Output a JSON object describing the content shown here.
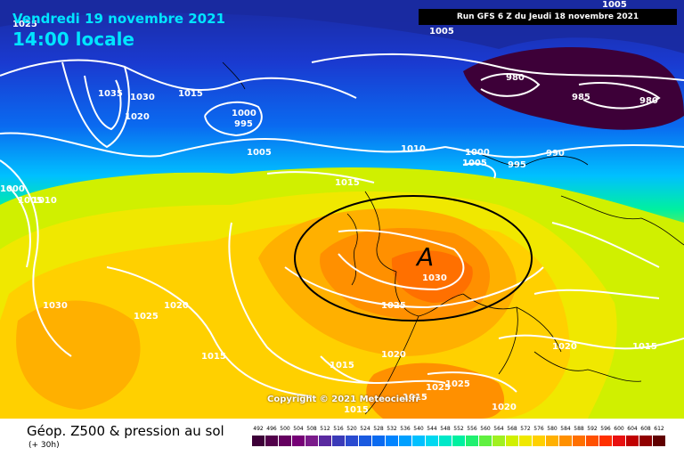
{
  "header": {
    "date_line": "Vendredi 19 novembre 2021",
    "time_line": "14:00 locale",
    "run_info": "Run GFS 6 Z du Jeudi 18 novembre 2021"
  },
  "map": {
    "high_pressure_symbol": "A",
    "copyright": "Copyright © 2021 Meteociel.fr",
    "isobar_labels": [
      "1025",
      "1035",
      "1030",
      "1020",
      "1015",
      "1000",
      "995",
      "1005",
      "1010",
      "1005",
      "1000",
      "1005",
      "995",
      "990",
      "980",
      "985",
      "980",
      "1015",
      "1000",
      "1005",
      "1010",
      "1030",
      "1025",
      "1030",
      "1025",
      "1020",
      "1015",
      "1015",
      "1020",
      "1025",
      "1025",
      "1020",
      "1015",
      "1020",
      "1015",
      "1015",
      "1005"
    ],
    "contour_color": "#ffffff",
    "high_ellipse_color": "#000000"
  },
  "footer": {
    "title": "Géop. Z500 & pression au sol",
    "subtitle": "(+ 30h)"
  },
  "legend": {
    "labels": [
      "492",
      "496",
      "500",
      "504",
      "508",
      "512",
      "516",
      "520",
      "524",
      "528",
      "532",
      "536",
      "540",
      "544",
      "548",
      "552",
      "556",
      "560",
      "564",
      "568",
      "572",
      "576",
      "580",
      "584",
      "588",
      "592",
      "596",
      "600",
      "604",
      "608",
      "612"
    ],
    "colors": [
      "#3d0038",
      "#52004a",
      "#650060",
      "#760076",
      "#7a1a8a",
      "#5a2aa0",
      "#3a3ab8",
      "#2a4ad0",
      "#1a5ae0",
      "#0a6af0",
      "#0084ff",
      "#00a0ff",
      "#00c0ff",
      "#00d8f0",
      "#00e8c8",
      "#00f0a0",
      "#20f070",
      "#60f040",
      "#a0f020",
      "#d0f000",
      "#f0e800",
      "#ffd000",
      "#ffb000",
      "#ff9000",
      "#ff7000",
      "#ff5000",
      "#ff3000",
      "#e81010",
      "#c00000",
      "#900000",
      "#600000"
    ]
  }
}
